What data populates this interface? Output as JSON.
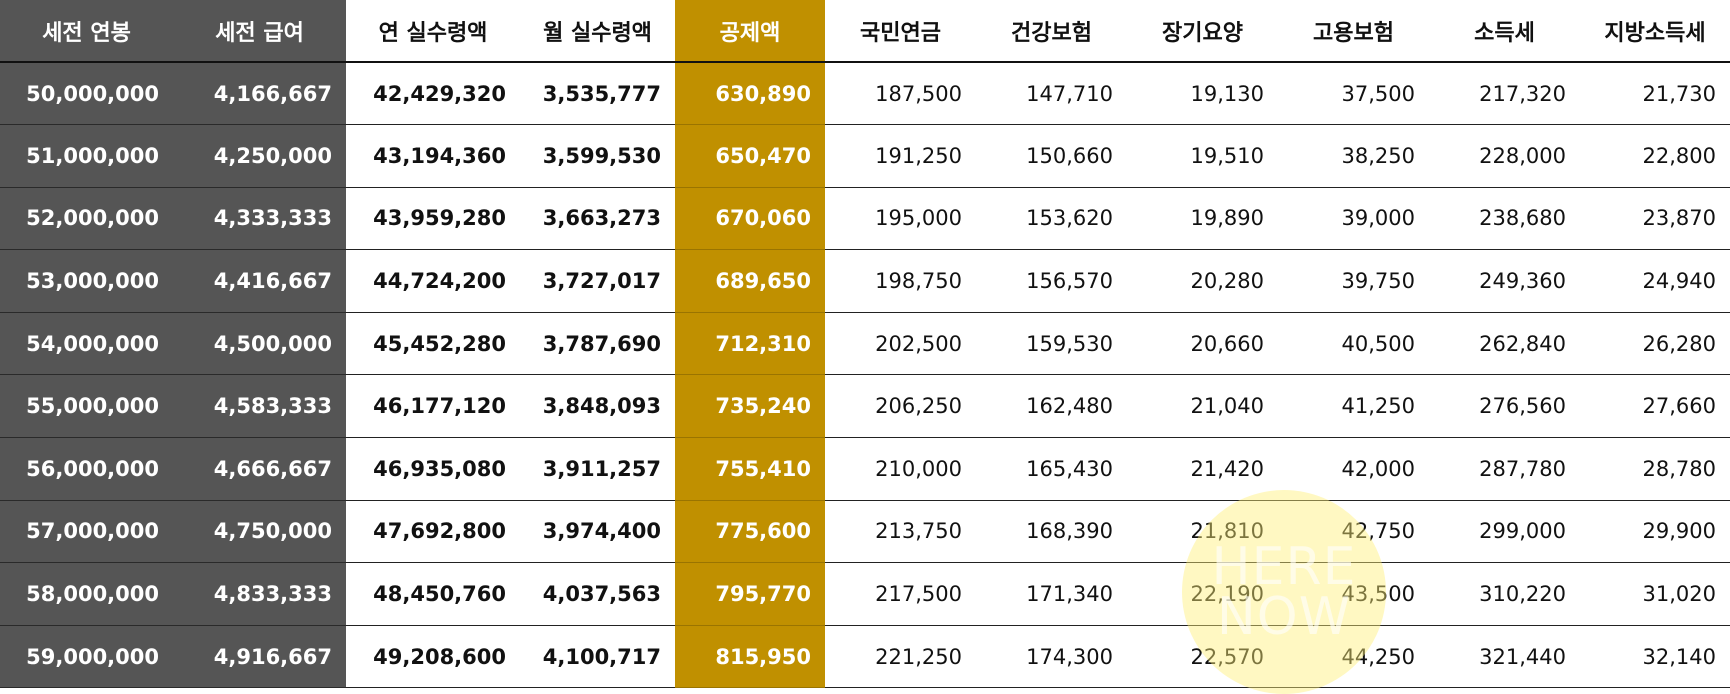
{
  "table": {
    "headers": [
      "세전 연봉",
      "세전 급여",
      "연 실수령액",
      "월 실수령액",
      "공제액",
      "국민연금",
      "건강보험",
      "장기요양",
      "고용보험",
      "소득세",
      "지방소득세"
    ],
    "rows": [
      [
        "50,000,000",
        "4,166,667",
        "42,429,320",
        "3,535,777",
        "630,890",
        "187,500",
        "147,710",
        "19,130",
        "37,500",
        "217,320",
        "21,730"
      ],
      [
        "51,000,000",
        "4,250,000",
        "43,194,360",
        "3,599,530",
        "650,470",
        "191,250",
        "150,660",
        "19,510",
        "38,250",
        "228,000",
        "22,800"
      ],
      [
        "52,000,000",
        "4,333,333",
        "43,959,280",
        "3,663,273",
        "670,060",
        "195,000",
        "153,620",
        "19,890",
        "39,000",
        "238,680",
        "23,870"
      ],
      [
        "53,000,000",
        "4,416,667",
        "44,724,200",
        "3,727,017",
        "689,650",
        "198,750",
        "156,570",
        "20,280",
        "39,750",
        "249,360",
        "24,940"
      ],
      [
        "54,000,000",
        "4,500,000",
        "45,452,280",
        "3,787,690",
        "712,310",
        "202,500",
        "159,530",
        "20,660",
        "40,500",
        "262,840",
        "26,280"
      ],
      [
        "55,000,000",
        "4,583,333",
        "46,177,120",
        "3,848,093",
        "735,240",
        "206,250",
        "162,480",
        "21,040",
        "41,250",
        "276,560",
        "27,660"
      ],
      [
        "56,000,000",
        "4,666,667",
        "46,935,080",
        "3,911,257",
        "755,410",
        "210,000",
        "165,430",
        "21,420",
        "42,000",
        "287,780",
        "28,780"
      ],
      [
        "57,000,000",
        "4,750,000",
        "47,692,800",
        "3,974,400",
        "775,600",
        "213,750",
        "168,390",
        "21,810",
        "42,750",
        "299,000",
        "29,900"
      ],
      [
        "58,000,000",
        "4,833,333",
        "48,450,760",
        "4,037,563",
        "795,770",
        "217,500",
        "171,340",
        "22,190",
        "43,500",
        "310,220",
        "31,020"
      ],
      [
        "59,000,000",
        "4,916,667",
        "49,208,600",
        "4,100,717",
        "815,950",
        "221,250",
        "174,300",
        "22,570",
        "44,250",
        "321,440",
        "32,140"
      ]
    ]
  },
  "watermark": {
    "line1": "HERE",
    "line2": "NOW"
  },
  "colors": {
    "dark_column": "#555555",
    "accent_column": "#c09000"
  }
}
